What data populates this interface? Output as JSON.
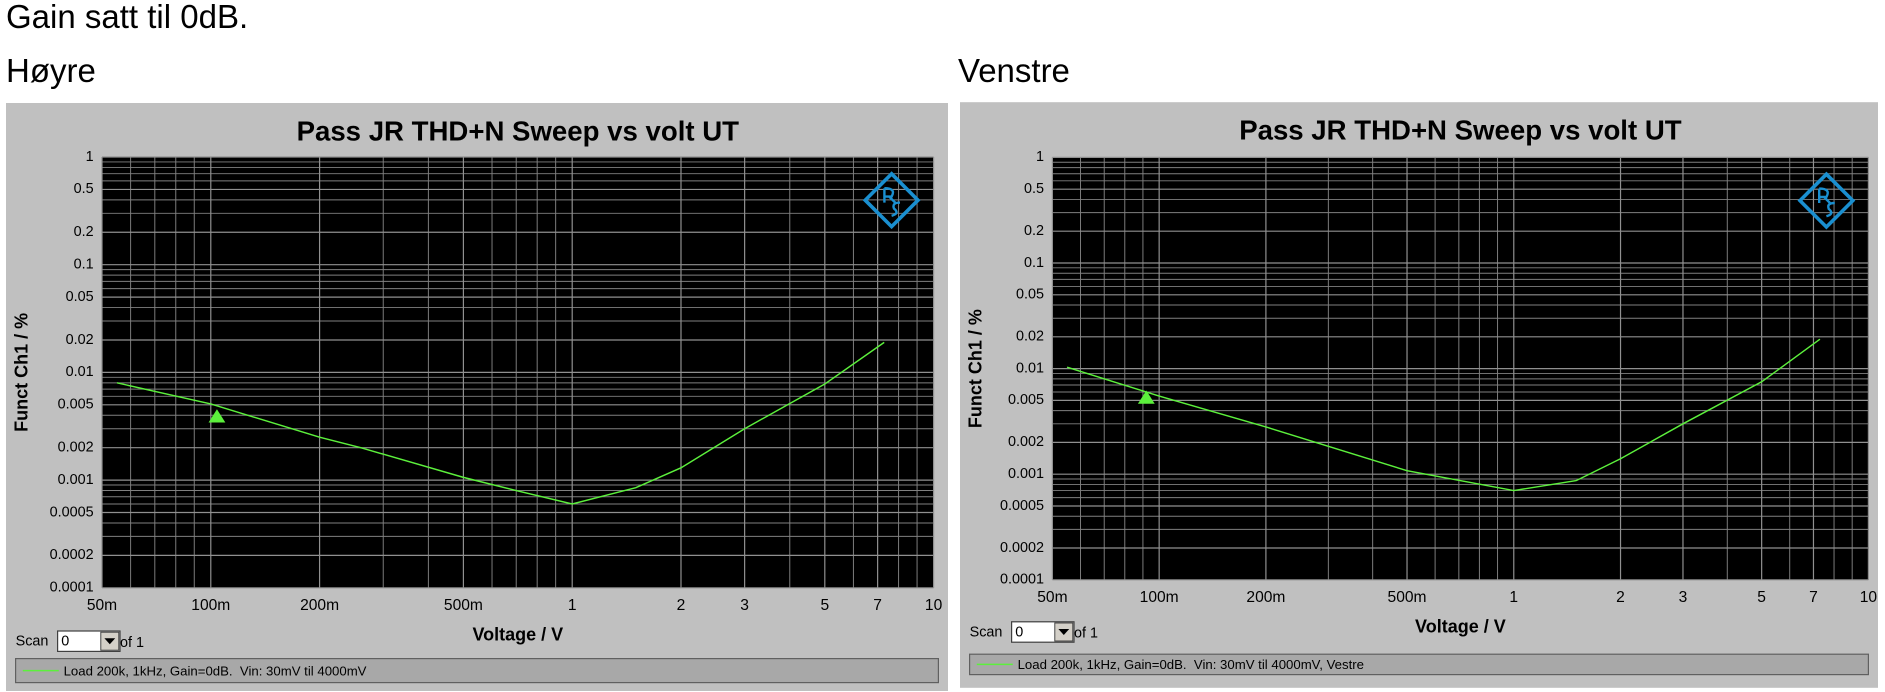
{
  "heading": "Gain satt til 0dB.",
  "left_label": "Høyre",
  "right_label": "Venstre",
  "chart_data": [
    {
      "type": "line",
      "title": "Pass JR THD+N Sweep vs volt UT",
      "x_label": "Voltage / V",
      "y_label": "Funct Ch1 / %",
      "xscale": "log",
      "yscale": "log",
      "grid": true,
      "xlim": [
        0.05,
        10
      ],
      "ylim": [
        0.0001,
        1
      ],
      "xticks": [
        {
          "value": 0.05,
          "label": "50m"
        },
        {
          "value": 0.1,
          "label": "100m"
        },
        {
          "value": 0.2,
          "label": "200m"
        },
        {
          "value": 0.5,
          "label": "500m"
        },
        1,
        2,
        3,
        5,
        7,
        10
      ],
      "yticks": [
        1,
        0.5,
        0.2,
        0.1,
        0.05,
        0.02,
        0.01,
        0.005,
        0.002,
        0.001,
        0.0005,
        0.0002,
        0.0001
      ],
      "x_minor_grid": [
        0.06,
        0.07,
        0.08,
        0.09,
        0.3,
        0.4,
        0.6,
        0.7,
        0.8,
        0.9,
        4,
        6,
        8,
        9
      ],
      "y_minor_grid": [
        0.9,
        0.8,
        0.7,
        0.6,
        0.4,
        0.3,
        0.09,
        0.08,
        0.07,
        0.06,
        0.04,
        0.03,
        0.009,
        0.008,
        0.007,
        0.006,
        0.004,
        0.003,
        0.0009,
        0.0008,
        0.0007,
        0.0006,
        0.0004,
        0.0003
      ],
      "x": [
        0.055,
        0.1,
        0.2,
        0.26,
        0.5,
        0.7,
        1,
        1.5,
        2,
        3,
        5,
        7.3
      ],
      "series": [
        {
          "name": "Load 200k, 1kHz, Gain=0dB.  Vin: 30mV til 4000mV",
          "color": "#5cf03c",
          "values": [
            0.008,
            0.0051,
            0.0025,
            0.002,
            0.00106,
            0.0008,
            0.0006,
            0.00085,
            0.0013,
            0.003,
            0.0078,
            0.019
          ]
        }
      ],
      "cursor": {
        "x": 0.104,
        "y": 0.0039
      },
      "scan": {
        "label": "Scan",
        "value": 0,
        "of": "of 1"
      }
    },
    {
      "type": "line",
      "title": "Pass JR THD+N Sweep vs volt UT",
      "x_label": "Voltage / V",
      "y_label": "Funct Ch1 / %",
      "xscale": "log",
      "yscale": "log",
      "grid": true,
      "xlim": [
        0.05,
        10
      ],
      "ylim": [
        0.0001,
        1
      ],
      "xticks": [
        {
          "value": 0.05,
          "label": "50m"
        },
        {
          "value": 0.1,
          "label": "100m"
        },
        {
          "value": 0.2,
          "label": "200m"
        },
        {
          "value": 0.5,
          "label": "500m"
        },
        1,
        2,
        3,
        5,
        7,
        10
      ],
      "yticks": [
        1,
        0.5,
        0.2,
        0.1,
        0.05,
        0.02,
        0.01,
        0.005,
        0.002,
        0.001,
        0.0005,
        0.0002,
        0.0001
      ],
      "x_minor_grid": [
        0.06,
        0.07,
        0.08,
        0.09,
        0.3,
        0.4,
        0.6,
        0.7,
        0.8,
        0.9,
        4,
        6,
        8,
        9
      ],
      "y_minor_grid": [
        0.9,
        0.8,
        0.7,
        0.6,
        0.4,
        0.3,
        0.09,
        0.08,
        0.07,
        0.06,
        0.04,
        0.03,
        0.009,
        0.008,
        0.007,
        0.006,
        0.004,
        0.003,
        0.0009,
        0.0008,
        0.0007,
        0.0006,
        0.0004,
        0.0003
      ],
      "x": [
        0.055,
        0.1,
        0.2,
        0.5,
        1,
        1.5,
        2,
        3,
        5,
        7.3
      ],
      "series": [
        {
          "name": "Load 200k, 1kHz, Gain=0dB.  Vin: 30mV til 4000mV, Vestre",
          "color": "#5cf03c",
          "values": [
            0.0103,
            0.0055,
            0.0028,
            0.00108,
            0.0007,
            0.00087,
            0.0014,
            0.003,
            0.0075,
            0.019
          ]
        }
      ],
      "cursor": {
        "x": 0.092,
        "y": 0.0053
      },
      "scan": {
        "label": "Scan",
        "value": 0,
        "of": "of 1"
      }
    }
  ]
}
